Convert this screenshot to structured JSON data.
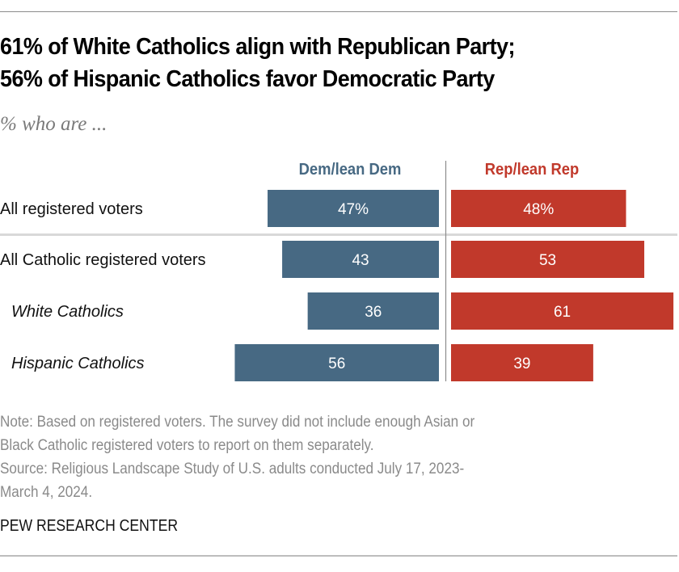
{
  "header": {
    "title_lines": [
      "61% of White Catholics align with Republican Party;",
      "56% of Hispanic Catholics favor Democratic Party"
    ],
    "subtitle": "% who are ..."
  },
  "colors": {
    "dem": "#476983",
    "rep": "#c1392b",
    "dem_label": "#476983",
    "rep_label": "#c1392b",
    "axis": "#8c8c8c",
    "divider": "#d9d9d9"
  },
  "chart_data": {
    "type": "bar",
    "orientation": "diverging-horizontal",
    "title": "61% of White Catholics align with Republican Party; 56% of Hispanic Catholics favor Democratic Party",
    "subtitle": "% who are ...",
    "categories": [
      "All registered voters",
      "All Catholic registered voters",
      "White Catholics",
      "Hispanic Catholics"
    ],
    "category_italic": [
      false,
      false,
      true,
      true
    ],
    "series": [
      {
        "name": "Dem/lean Dem",
        "values": [
          47,
          43,
          36,
          56
        ],
        "labels": [
          "47%",
          "43",
          "36",
          "56"
        ]
      },
      {
        "name": "Rep/lean Rep",
        "values": [
          48,
          53,
          61,
          39
        ],
        "labels": [
          "48%",
          "53",
          "61",
          "39"
        ]
      }
    ],
    "xlim": [
      0,
      100
    ],
    "divider_after_index": 0,
    "grid": false,
    "legend": "column-headers-top",
    "xlabel": "",
    "ylabel": ""
  },
  "footer": {
    "note_lines": [
      "Note: Based on registered voters. The survey did not include enough Asian or",
      "Black Catholic registered voters to report on them separately.",
      "Source: Religious Landscape Study of U.S. adults conducted July 17, 2023-",
      "March 4, 2024."
    ],
    "brand": "PEW RESEARCH CENTER"
  }
}
